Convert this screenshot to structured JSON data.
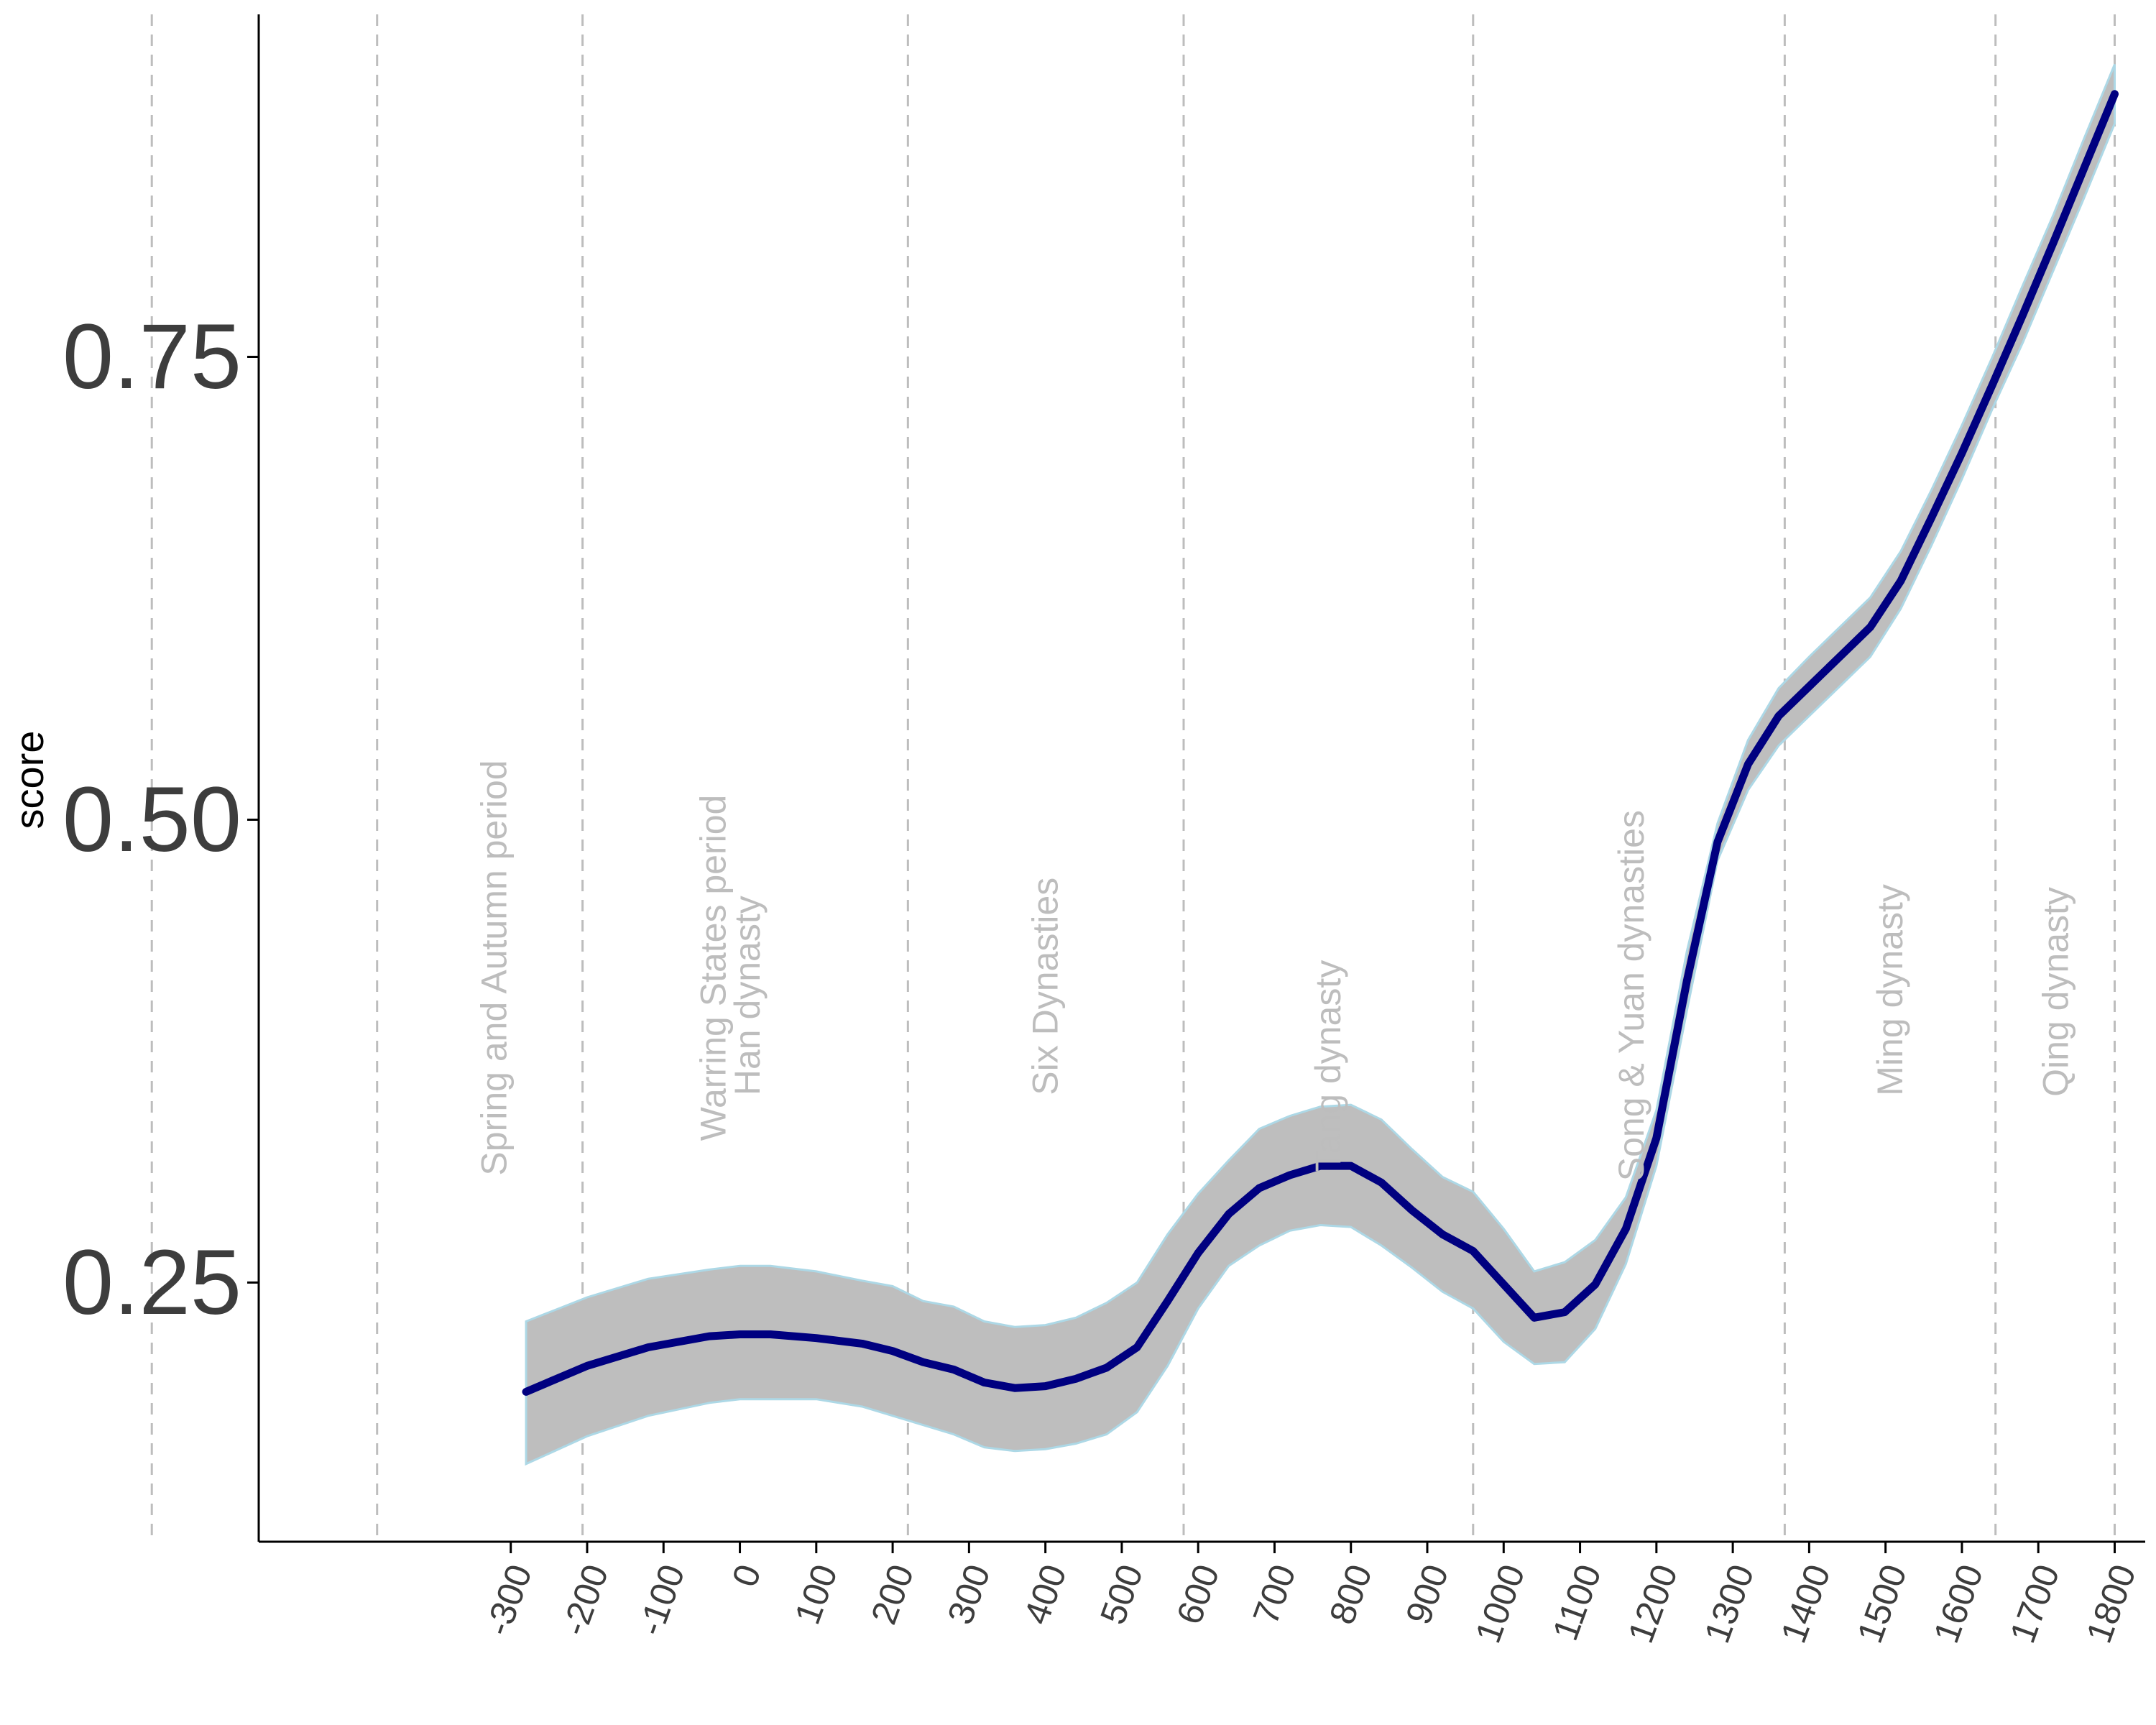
{
  "chart_data": {
    "type": "line",
    "title": "",
    "xlabel": "",
    "ylabel": "score",
    "xlim": [
      -630,
      1840
    ],
    "ylim": [
      0.11,
      0.935
    ],
    "y_ticks": [
      0.25,
      0.5,
      0.75
    ],
    "y_tick_labels": [
      "0.25",
      "0.50",
      "0.75"
    ],
    "x_ticks": [
      -300,
      -200,
      -100,
      0,
      100,
      200,
      300,
      400,
      500,
      600,
      700,
      800,
      900,
      1000,
      1100,
      1200,
      1300,
      1400,
      1500,
      1600,
      1700,
      1800
    ],
    "x_tick_labels": [
      "-300",
      "-200",
      "-100",
      "0",
      "100",
      "200",
      "300",
      "400",
      "500",
      "600",
      "700",
      "800",
      "900",
      "1000",
      "1100",
      "1200",
      "1300",
      "1400",
      "1500",
      "1600",
      "1700",
      "1800"
    ],
    "grid": false,
    "colors": {
      "line": "#000080",
      "band_fill": "#bebebe",
      "band_edge": "#add8e6",
      "period_line": "#bdbdbd",
      "period_text": "#bdbdbd"
    },
    "period_boundaries": [
      -770,
      -475,
      -206,
      220,
      581,
      960,
      1368,
      1644,
      1800
    ],
    "periods": [
      {
        "label": "Spring and Autumn period",
        "x": -322,
        "y": 0.42
      },
      {
        "label": "Warring States period",
        "x": -35,
        "y": 0.42
      },
      {
        "label": "Han dynasty",
        "x": 10,
        "y": 0.405
      },
      {
        "label": "Six Dynasties",
        "x": 400,
        "y": 0.41
      },
      {
        "label": "Tang dynasty",
        "x": 770,
        "y": 0.367
      },
      {
        "label": "Song & Yuan dynasties",
        "x": 1167,
        "y": 0.405
      },
      {
        "label": "Ming dynasty",
        "x": 1506,
        "y": 0.408
      },
      {
        "label": "Qing dynasty",
        "x": 1723,
        "y": 0.407
      }
    ],
    "series": [
      {
        "x": [
          -280,
          -200,
          -120,
          -40,
          0,
          40,
          100,
          160,
          200,
          240,
          280,
          320,
          360,
          400,
          440,
          480,
          520,
          560,
          600,
          640,
          680,
          720,
          760,
          800,
          840,
          880,
          920,
          960,
          1000,
          1040,
          1080,
          1120,
          1160,
          1200,
          1240,
          1280,
          1320,
          1360,
          1400,
          1440,
          1480,
          1520,
          1560,
          1600,
          1640,
          1680,
          1720,
          1760,
          1800
        ],
        "y": [
          0.191,
          0.205,
          0.215,
          0.221,
          0.222,
          0.222,
          0.22,
          0.217,
          0.213,
          0.207,
          0.203,
          0.196,
          0.193,
          0.194,
          0.198,
          0.204,
          0.215,
          0.24,
          0.266,
          0.287,
          0.301,
          0.308,
          0.313,
          0.313,
          0.304,
          0.289,
          0.276,
          0.267,
          0.249,
          0.231,
          0.234,
          0.249,
          0.279,
          0.328,
          0.413,
          0.488,
          0.53,
          0.556,
          0.572,
          0.588,
          0.604,
          0.629,
          0.663,
          0.698,
          0.735,
          0.773,
          0.812,
          0.852,
          0.892
        ],
        "ci_low": [
          0.152,
          0.167,
          0.178,
          0.185,
          0.187,
          0.187,
          0.187,
          0.183,
          0.178,
          0.173,
          0.168,
          0.161,
          0.159,
          0.16,
          0.163,
          0.168,
          0.18,
          0.205,
          0.236,
          0.259,
          0.27,
          0.278,
          0.281,
          0.28,
          0.27,
          0.258,
          0.245,
          0.236,
          0.218,
          0.206,
          0.207,
          0.225,
          0.26,
          0.313,
          0.397,
          0.478,
          0.516,
          0.54,
          0.556,
          0.572,
          0.588,
          0.614,
          0.648,
          0.684,
          0.722,
          0.758,
          0.797,
          0.836,
          0.876
        ],
        "ci_high": [
          0.229,
          0.242,
          0.252,
          0.257,
          0.259,
          0.259,
          0.256,
          0.251,
          0.248,
          0.24,
          0.237,
          0.229,
          0.226,
          0.227,
          0.231,
          0.239,
          0.25,
          0.276,
          0.298,
          0.316,
          0.333,
          0.34,
          0.345,
          0.346,
          0.338,
          0.322,
          0.307,
          0.299,
          0.279,
          0.256,
          0.261,
          0.273,
          0.296,
          0.343,
          0.429,
          0.498,
          0.543,
          0.571,
          0.588,
          0.604,
          0.62,
          0.645,
          0.678,
          0.713,
          0.75,
          0.789,
          0.827,
          0.868,
          0.908
        ]
      }
    ]
  }
}
